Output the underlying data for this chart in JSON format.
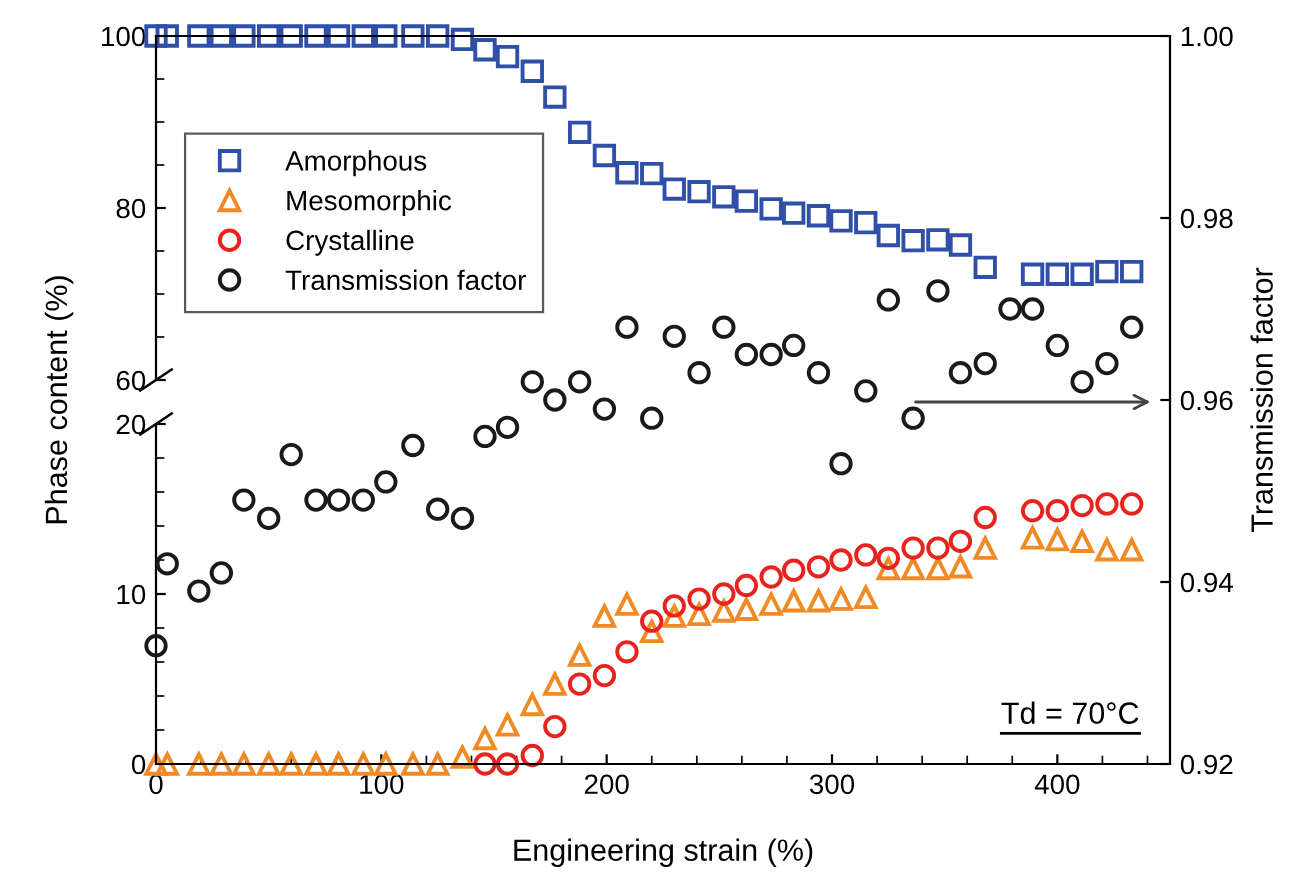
{
  "chart_data": [
    {
      "type": "scatter",
      "xlim": [
        0,
        450
      ],
      "xticks": [
        0,
        100,
        200,
        300,
        400
      ],
      "tick_labels": "y",
      "ylim": [
        60,
        100
      ],
      "yticks": [
        60,
        80,
        100
      ],
      "ylabel": "Phase content (%)",
      "legend": "top left",
      "x": [
        0,
        5,
        19,
        29,
        39,
        50,
        60,
        71,
        81,
        92,
        102,
        114,
        125,
        136,
        146,
        156,
        167,
        177,
        188,
        199,
        209,
        220,
        230,
        241,
        252,
        262,
        273,
        283,
        294,
        304,
        315,
        325,
        336,
        347,
        357,
        368,
        389,
        400,
        411,
        422,
        433
      ],
      "series": [
        {
          "name": "Amorphous",
          "color": "#2f4fa8",
          "marker": "square",
          "values": [
            100,
            100,
            100,
            100,
            100,
            100,
            100,
            100,
            100,
            100,
            100,
            100,
            100,
            99.6,
            98.4,
            97.6,
            95.9,
            92.9,
            88.8,
            86.1,
            84.1,
            84.0,
            82.2,
            81.9,
            81.3,
            80.8,
            79.9,
            79.4,
            79.1,
            78.5,
            78.3,
            76.8,
            76.2,
            76.3,
            75.7,
            73.1,
            72.3,
            72.3,
            72.3,
            72.6,
            72.6
          ]
        }
      ]
    },
    {
      "type": "scatter",
      "xlim": [
        0,
        450
      ],
      "xticks": [
        0,
        100,
        200,
        300,
        400
      ],
      "xlabel": "Engineering strain (%)",
      "ylim": [
        0,
        20
      ],
      "yticks": [
        0,
        10,
        20
      ],
      "annotations": [
        "Td = 70°C"
      ],
      "legend": "top left",
      "x": [
        0,
        5,
        19,
        29,
        39,
        50,
        60,
        71,
        81,
        92,
        102,
        114,
        125,
        136,
        146,
        156,
        167,
        177,
        188,
        199,
        209,
        220,
        230,
        241,
        252,
        262,
        273,
        283,
        294,
        304,
        315,
        325,
        336,
        347,
        357,
        368,
        389,
        400,
        411,
        422,
        433
      ],
      "series": [
        {
          "name": "Mesomorphic",
          "color": "#f08a24",
          "marker": "triangle",
          "values": [
            0,
            0,
            0,
            0,
            0,
            0,
            0,
            0,
            0,
            0,
            0,
            0,
            0,
            0.4,
            1.5,
            2.3,
            3.5,
            4.7,
            6.4,
            8.7,
            9.4,
            7.8,
            8.7,
            8.8,
            9.0,
            9.1,
            9.4,
            9.6,
            9.6,
            9.7,
            9.8,
            11.5,
            11.5,
            11.5,
            11.6,
            12.7,
            13.3,
            13.2,
            13.1,
            12.6,
            12.6
          ]
        },
        {
          "name": "Crystalline",
          "color": "#e8231e",
          "marker": "circle",
          "x": [
            146,
            156,
            167,
            177,
            188,
            199,
            209,
            220,
            230,
            241,
            252,
            262,
            273,
            283,
            294,
            304,
            315,
            325,
            336,
            347,
            357,
            368,
            389,
            400,
            411,
            422,
            433
          ],
          "values": [
            0,
            0,
            0.5,
            2.2,
            4.7,
            5.2,
            6.6,
            8.4,
            9.3,
            9.7,
            10.0,
            10.5,
            11.0,
            11.4,
            11.6,
            12.0,
            12.3,
            12.1,
            12.7,
            12.7,
            13.1,
            14.5,
            14.9,
            14.9,
            15.2,
            15.3,
            15.3
          ]
        }
      ]
    },
    {
      "type": "scatter",
      "xlim": [
        0,
        450
      ],
      "xticks": [
        0,
        100,
        200,
        300,
        400
      ],
      "tick_labels": "y",
      "ylim": [
        0.92,
        1.0
      ],
      "yticks": [
        0.92,
        0.94,
        0.96,
        0.98,
        {
          "value": 1.0,
          "label": "1.00"
        }
      ],
      "ylabel": "Transmission factor",
      "legend": "top left",
      "x": [
        0,
        5,
        19,
        29,
        39,
        50,
        60,
        71,
        81,
        92,
        102,
        114,
        125,
        136,
        146,
        156,
        167,
        177,
        188,
        199,
        209,
        220,
        230,
        241,
        252,
        262,
        273,
        283,
        294,
        304,
        315,
        325,
        336,
        347,
        357,
        368,
        379,
        389,
        400,
        411,
        422,
        433
      ],
      "series": [
        {
          "name": "Transmission factor",
          "color": "#1a1a1a",
          "marker": "circle",
          "values": [
            0.933,
            0.942,
            0.939,
            0.941,
            0.949,
            0.947,
            0.954,
            0.949,
            0.949,
            0.949,
            0.951,
            0.955,
            0.948,
            0.947,
            0.956,
            0.957,
            0.962,
            0.96,
            0.962,
            0.959,
            0.968,
            0.958,
            0.967,
            0.963,
            0.968,
            0.965,
            0.965,
            0.966,
            0.963,
            0.953,
            0.961,
            0.971,
            0.958,
            0.972,
            0.963,
            0.964,
            0.97,
            0.97,
            0.966,
            0.962,
            0.964,
            0.968
          ]
        }
      ]
    }
  ]
}
